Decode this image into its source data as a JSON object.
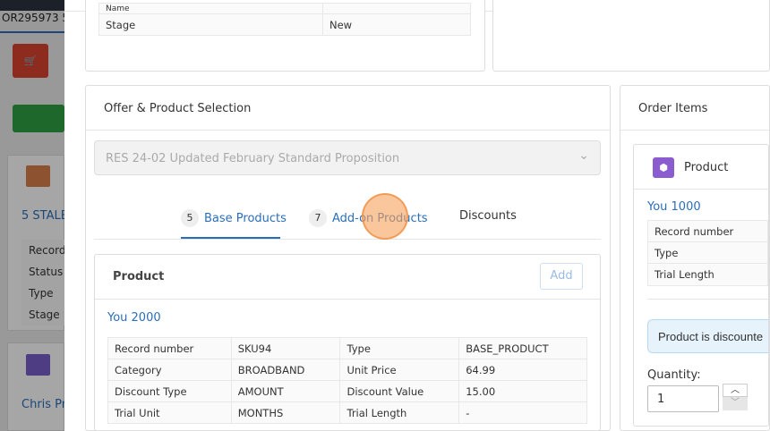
{
  "background": {
    "order_tab": "OR295973 5",
    "account_link": "5 STALE",
    "account_fields": [
      "Record",
      "Status",
      "Type",
      "Stage"
    ],
    "contact_link": "Chris Pr",
    "colors": {
      "cart": "#d9432e",
      "green": "#2ea043",
      "orange": "#d9804a",
      "purple": "#7a5fc9"
    }
  },
  "top_card": {
    "rows": [
      {
        "label": "Name",
        "value": ""
      },
      {
        "label": "Stage",
        "value": "New"
      }
    ]
  },
  "offer": {
    "title": "Offer & Product Selection",
    "select_value": "RES 24-02 Updated February Standard Proposition",
    "tabs": [
      {
        "count": "5",
        "label": "Base Products",
        "active": true
      },
      {
        "count": "7",
        "label": "Add-on Products"
      },
      {
        "label": "Discounts"
      }
    ],
    "product": {
      "header": "Product",
      "add_label": "Add",
      "name": "You 2000",
      "rows": [
        [
          "Record number",
          "SKU94",
          "Type",
          "BASE_PRODUCT"
        ],
        [
          "Category",
          "BROADBAND",
          "Unit Price",
          "64.99"
        ],
        [
          "Discount Type",
          "AMOUNT",
          "Discount Value",
          "15.00"
        ],
        [
          "Trial Unit",
          "MONTHS",
          "Trial Length",
          "-"
        ]
      ]
    }
  },
  "order_items": {
    "title": "Order Items",
    "product_header": "Product",
    "name": "You 1000",
    "rows": [
      "Record number",
      "Type",
      "Trial Length"
    ],
    "alert": "Product is discounte",
    "quantity_label": "Quantity:",
    "quantity_value": "1"
  }
}
